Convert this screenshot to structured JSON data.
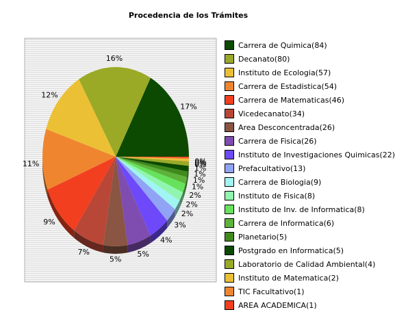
{
  "chart_data": {
    "type": "pie",
    "title": "Procedencia de los Trámites",
    "percent_labels": [
      "17%",
      "16%",
      "12%",
      "11%",
      "9%",
      "7%",
      "5%",
      "5%",
      "4%",
      "3%",
      "2%",
      "2%",
      "2%",
      "1%",
      "1%",
      "1%",
      "1%",
      "0%",
      "0%",
      "0%"
    ],
    "slices": [
      {
        "label": "Carrera de Quimica(84)",
        "value": 84,
        "color": "#0b4a00"
      },
      {
        "label": "Decanato(80)",
        "value": 80,
        "color": "#9aaa27"
      },
      {
        "label": "Instituto de Ecologia(57)",
        "value": 57,
        "color": "#ecc034"
      },
      {
        "label": "Carrera de Estadistica(54)",
        "value": 54,
        "color": "#f08530"
      },
      {
        "label": "Carrera de Matematicas(46)",
        "value": 46,
        "color": "#f23f20"
      },
      {
        "label": "Vicedecanato(34)",
        "value": 34,
        "color": "#b94737"
      },
      {
        "label": "Area Desconcentrada(26)",
        "value": 26,
        "color": "#8a5542"
      },
      {
        "label": "Carrera de Fisica(26)",
        "value": 26,
        "color": "#7f4cb0"
      },
      {
        "label": "Instituto de Investigaciones Quimicas(22)",
        "value": 22,
        "color": "#6d49fa"
      },
      {
        "label": "Prefacultativo(13)",
        "value": 13,
        "color": "#91a3f5"
      },
      {
        "label": "Carrera de Biologia(9)",
        "value": 9,
        "color": "#a0f4f2"
      },
      {
        "label": "Instituto de Fisica(8)",
        "value": 8,
        "color": "#90f5ae"
      },
      {
        "label": "Instituto de Inv. de Informatica(8)",
        "value": 8,
        "color": "#67e25c"
      },
      {
        "label": "Carrera de Informatica(6)",
        "value": 6,
        "color": "#5db33a"
      },
      {
        "label": "Planetario(5)",
        "value": 5,
        "color": "#3f8a1b"
      },
      {
        "label": "Postgrado en Informatica(5)",
        "value": 5,
        "color": "#0b4a00"
      },
      {
        "label": "Laboratorio de Calidad Ambiental(4)",
        "value": 4,
        "color": "#9aaa27"
      },
      {
        "label": "Instituto de Matematica(2)",
        "value": 2,
        "color": "#ecc034"
      },
      {
        "label": "TIC Facultativo(1)",
        "value": 1,
        "color": "#f08530"
      },
      {
        "label": "AREA ACADEMICA(1)",
        "value": 1,
        "color": "#f23f20"
      }
    ],
    "legend_position": "right",
    "plot_background": "striped-gray"
  }
}
